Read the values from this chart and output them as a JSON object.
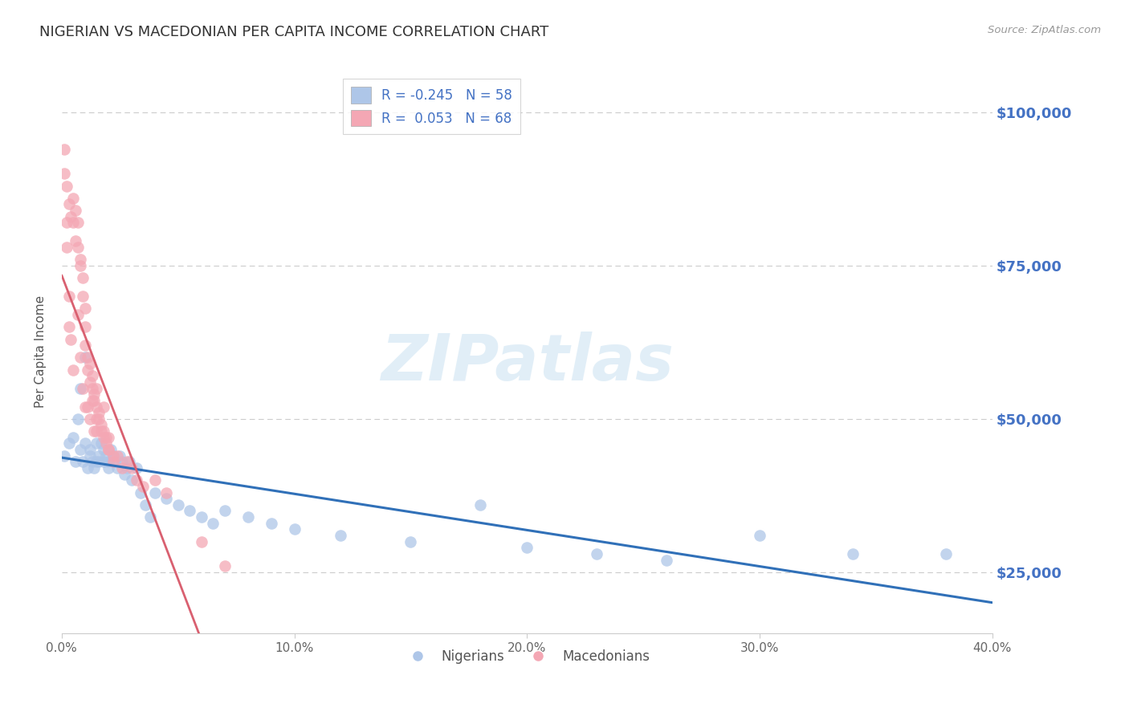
{
  "title": "NIGERIAN VS MACEDONIAN PER CAPITA INCOME CORRELATION CHART",
  "source": "Source: ZipAtlas.com",
  "ylabel": "Per Capita Income",
  "xlim": [
    0.0,
    0.4
  ],
  "ylim": [
    15000,
    107000
  ],
  "yticks": [
    25000,
    50000,
    75000,
    100000
  ],
  "ytick_labels": [
    "$25,000",
    "$50,000",
    "$75,000",
    "$100,000"
  ],
  "xticks": [
    0.0,
    0.1,
    0.2,
    0.3,
    0.4
  ],
  "xtick_labels": [
    "0.0%",
    "10.0%",
    "20.0%",
    "30.0%",
    "40.0%"
  ],
  "blue_color": "#aec6e8",
  "pink_color": "#f4a7b4",
  "blue_line_color": "#3070b8",
  "pink_line_color": "#d96070",
  "axis_label_color": "#4472c4",
  "legend_label_color": "#4472c4",
  "legend_blue_label": "R = -0.245   N = 58",
  "legend_pink_label": "R =  0.053   N = 68",
  "watermark": "ZIPatlas",
  "nigerians_label": "Nigerians",
  "macedonians_label": "Macedonians",
  "blue_scatter_x": [
    0.001,
    0.003,
    0.005,
    0.006,
    0.007,
    0.008,
    0.008,
    0.009,
    0.01,
    0.01,
    0.011,
    0.012,
    0.012,
    0.013,
    0.014,
    0.015,
    0.015,
    0.016,
    0.016,
    0.017,
    0.018,
    0.018,
    0.019,
    0.02,
    0.02,
    0.021,
    0.022,
    0.023,
    0.024,
    0.025,
    0.026,
    0.027,
    0.028,
    0.029,
    0.03,
    0.032,
    0.034,
    0.036,
    0.038,
    0.04,
    0.045,
    0.05,
    0.055,
    0.06,
    0.065,
    0.07,
    0.08,
    0.09,
    0.1,
    0.12,
    0.15,
    0.18,
    0.2,
    0.23,
    0.26,
    0.3,
    0.34,
    0.38
  ],
  "blue_scatter_y": [
    44000,
    46000,
    47000,
    43000,
    50000,
    55000,
    45000,
    43000,
    60000,
    46000,
    42000,
    45000,
    44000,
    43000,
    42000,
    43000,
    46000,
    44000,
    43000,
    46000,
    45000,
    43000,
    44000,
    42000,
    43000,
    45000,
    44000,
    43000,
    42000,
    44000,
    43000,
    41000,
    42000,
    43000,
    40000,
    42000,
    38000,
    36000,
    34000,
    38000,
    37000,
    36000,
    35000,
    34000,
    33000,
    35000,
    34000,
    33000,
    32000,
    31000,
    30000,
    36000,
    29000,
    28000,
    27000,
    31000,
    28000,
    28000
  ],
  "pink_scatter_x": [
    0.001,
    0.002,
    0.003,
    0.004,
    0.005,
    0.005,
    0.006,
    0.006,
    0.007,
    0.007,
    0.008,
    0.008,
    0.009,
    0.009,
    0.01,
    0.01,
    0.01,
    0.011,
    0.011,
    0.012,
    0.012,
    0.013,
    0.013,
    0.014,
    0.014,
    0.015,
    0.015,
    0.015,
    0.016,
    0.016,
    0.017,
    0.017,
    0.018,
    0.018,
    0.019,
    0.019,
    0.02,
    0.02,
    0.022,
    0.022,
    0.024,
    0.026,
    0.028,
    0.03,
    0.032,
    0.035,
    0.04,
    0.045,
    0.06,
    0.07,
    0.001,
    0.002,
    0.002,
    0.003,
    0.003,
    0.004,
    0.005,
    0.013,
    0.018,
    0.01,
    0.02,
    0.015,
    0.012,
    0.007,
    0.008,
    0.009,
    0.011,
    0.014
  ],
  "pink_scatter_y": [
    94000,
    88000,
    85000,
    83000,
    82000,
    86000,
    79000,
    84000,
    78000,
    82000,
    76000,
    75000,
    73000,
    70000,
    65000,
    68000,
    62000,
    60000,
    58000,
    59000,
    56000,
    57000,
    55000,
    54000,
    53000,
    52000,
    50000,
    55000,
    51000,
    50000,
    49000,
    48000,
    48000,
    52000,
    47000,
    46000,
    47000,
    45000,
    44000,
    43000,
    44000,
    42000,
    43000,
    42000,
    40000,
    39000,
    40000,
    38000,
    30000,
    26000,
    90000,
    82000,
    78000,
    70000,
    65000,
    63000,
    58000,
    53000,
    47000,
    52000,
    45000,
    48000,
    50000,
    67000,
    60000,
    55000,
    52000,
    48000
  ]
}
